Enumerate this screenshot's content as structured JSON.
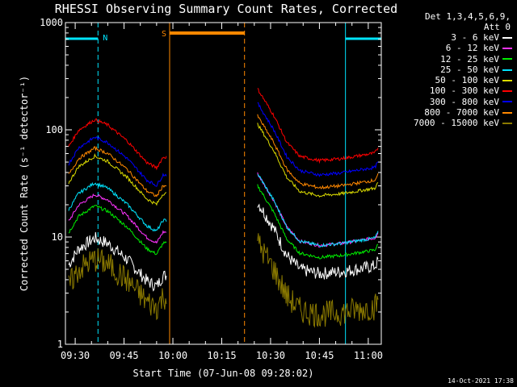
{
  "chart_data": {
    "type": "line",
    "title": "RHESSI Observing Summary Count Rates, Corrected",
    "xlabel": "Start Time (07-Jun-08 09:28:02)",
    "ylabel": "Corrected Count Rate (s⁻¹ detector⁻¹)",
    "yscale": "log",
    "ylim": [
      1,
      1000
    ],
    "xlim": [
      "09:27",
      "11:04"
    ],
    "x_ticks": [
      "09:30",
      "09:45",
      "10:00",
      "10:15",
      "10:30",
      "10:45",
      "11:00"
    ],
    "y_ticks": [
      "1",
      "10",
      "100",
      "1000"
    ],
    "detectors": "Det 1,3,4,5,6,9,",
    "attenuator": "Att 0",
    "legend_position": "right",
    "series": [
      {
        "name": "3 - 6 keV",
        "color": "#ffffff",
        "values": []
      },
      {
        "name": "6 - 12 keV",
        "color": "#ff33ff",
        "values": []
      },
      {
        "name": "12 - 25 keV",
        "color": "#00ee00",
        "values": []
      },
      {
        "name": "25 - 50 keV",
        "color": "#00e5ff",
        "values": []
      },
      {
        "name": "50 - 100 keV",
        "color": "#dddd00",
        "values": []
      },
      {
        "name": "100 - 300 keV",
        "color": "#ff0000",
        "values": []
      },
      {
        "name": "300 - 800 keV",
        "color": "#0000ff",
        "values": []
      },
      {
        "name": "800 - 7000 keV",
        "color": "#ff8800",
        "values": []
      },
      {
        "name": "7000 - 15000 keV",
        "color": "#8b7a00",
        "values": []
      }
    ],
    "night_intervals": [
      {
        "label": "N",
        "start": "09:27",
        "end": "09:37",
        "color": "#00e5ff"
      },
      {
        "label": "",
        "start": "10:53",
        "end": "11:04",
        "color": "#00e5ff"
      }
    ],
    "saa_interval": {
      "label": "S",
      "start": "09:59",
      "end": "10:22",
      "color": "#ff8800"
    }
  },
  "timestamp": "14-Oct-2021 17:38"
}
